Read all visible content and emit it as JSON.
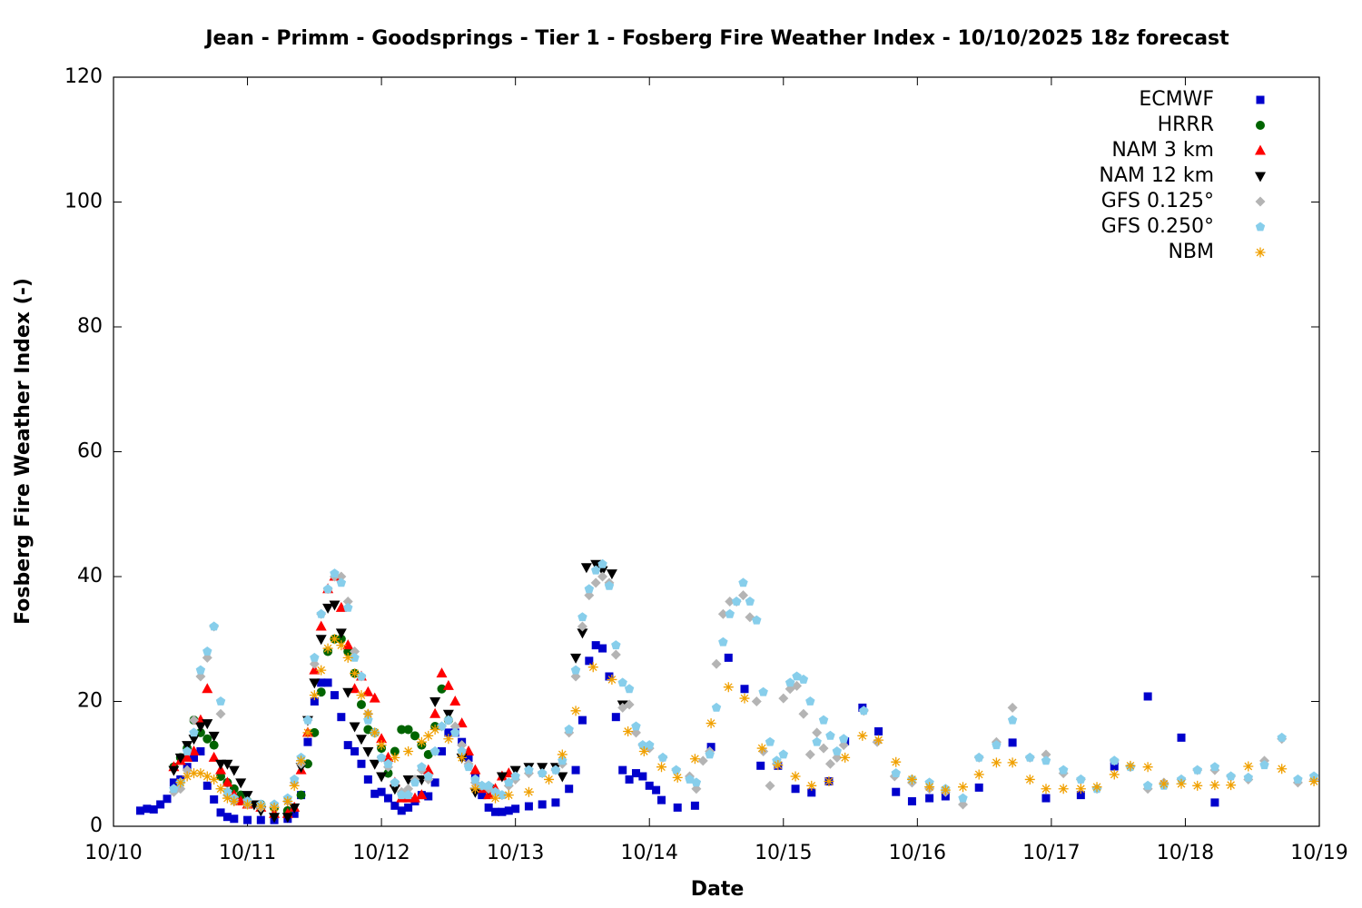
{
  "chart_data": {
    "type": "scatter",
    "title": "Jean - Primm - Goodsprings - Tier 1 - Fosberg Fire Weather Index - 10/10/2025 18z forecast",
    "xlabel": "Date",
    "ylabel": "Fosberg Fire Weather Index (-)",
    "xlim": [
      0,
      9
    ],
    "xticks": [
      {
        "value": 0,
        "label": "10/10"
      },
      {
        "value": 1,
        "label": "10/11"
      },
      {
        "value": 2,
        "label": "10/12"
      },
      {
        "value": 3,
        "label": "10/13"
      },
      {
        "value": 4,
        "label": "10/14"
      },
      {
        "value": 5,
        "label": "10/15"
      },
      {
        "value": 6,
        "label": "10/16"
      },
      {
        "value": 7,
        "label": "10/17"
      },
      {
        "value": 8,
        "label": "10/18"
      },
      {
        "value": 9,
        "label": "10/19"
      }
    ],
    "ylim": [
      0,
      120
    ],
    "yticks": [
      0,
      20,
      40,
      60,
      80,
      100,
      120
    ],
    "legend": "top-right",
    "series": [
      {
        "name": "ECMWF",
        "color": "#0000cc",
        "marker": "square",
        "x": [
          0.2,
          0.25,
          0.3,
          0.35,
          0.4,
          0.45,
          0.5,
          0.55,
          0.6,
          0.65,
          0.7,
          0.75,
          0.8,
          0.85,
          0.9,
          1.0,
          1.1,
          1.2,
          1.3,
          1.35,
          1.4,
          1.45,
          1.5,
          1.55,
          1.6,
          1.65,
          1.7,
          1.75,
          1.8,
          1.85,
          1.9,
          1.95,
          2.0,
          2.05,
          2.1,
          2.15,
          2.2,
          2.25,
          2.3,
          2.35,
          2.4,
          2.45,
          2.5,
          2.55,
          2.6,
          2.65,
          2.7,
          2.75,
          2.8,
          2.85,
          2.9,
          2.95,
          3.0,
          3.1,
          3.2,
          3.3,
          3.4,
          3.45,
          3.5,
          3.55,
          3.6,
          3.65,
          3.7,
          3.75,
          3.8,
          3.85,
          3.9,
          3.95,
          4.0,
          4.05,
          4.09,
          4.21,
          4.34,
          4.46,
          4.59,
          4.71,
          4.83,
          4.96,
          5.09,
          5.21,
          5.34,
          5.46,
          5.59,
          5.71,
          5.84,
          5.96,
          6.09,
          6.21,
          6.46,
          6.71,
          6.96,
          7.22,
          7.47,
          7.72,
          7.97,
          8.22
        ],
        "values": [
          2.5,
          2.8,
          2.7,
          3.5,
          4.4,
          7,
          7.5,
          9.5,
          11,
          12,
          6.5,
          4.3,
          2.2,
          1.5,
          1.2,
          1,
          1,
          1,
          1.2,
          2,
          5,
          13.5,
          20,
          23,
          23,
          21,
          17.5,
          13,
          12,
          10,
          7.5,
          5.2,
          5.5,
          4.5,
          3.3,
          2.5,
          3,
          4,
          5,
          4.8,
          7,
          12,
          15,
          15,
          13.5,
          11,
          8,
          5,
          3,
          2.3,
          2.3,
          2.5,
          2.8,
          3.2,
          3.5,
          3.8,
          6,
          9,
          17,
          26.5,
          29,
          28.5,
          24,
          17.5,
          9,
          7.5,
          8.5,
          8,
          6.5,
          5.8,
          4.2,
          3,
          3.3,
          12.7,
          27,
          22,
          9.7,
          9.7,
          6,
          5.4,
          7.2,
          13.6,
          19,
          15.2,
          5.5,
          4,
          4.5,
          4.8,
          6.2,
          13.4,
          4.5,
          5,
          9.6,
          20.8,
          14.2,
          3.8
        ]
      },
      {
        "name": "HRRR",
        "color": "#006400",
        "marker": "circle",
        "x": [
          0.45,
          0.5,
          0.55,
          0.6,
          0.65,
          0.7,
          0.75,
          0.8,
          0.85,
          0.9,
          0.95,
          1.0,
          1.1,
          1.2,
          1.3,
          1.4,
          1.45,
          1.5,
          1.55,
          1.6,
          1.65,
          1.7,
          1.75,
          1.8,
          1.85,
          1.9,
          1.95,
          2.0,
          2.05,
          2.1,
          2.15,
          2.2,
          2.25,
          2.3,
          2.35,
          2.4,
          2.45,
          2.5
        ],
        "values": [
          9.5,
          11,
          12.5,
          17,
          15,
          14,
          13,
          8,
          7,
          6,
          5,
          4,
          3.5,
          3,
          2.5,
          5,
          10,
          15,
          21.5,
          28,
          30,
          30,
          28,
          24.5,
          19.5,
          15.5,
          15,
          12.5,
          8.5,
          12,
          15.5,
          15.5,
          14.5,
          13,
          11.5,
          16,
          22,
          17
        ]
      },
      {
        "name": "NAM 3 km",
        "color": "#ff0000",
        "marker": "triangle-up",
        "x": [
          0.45,
          0.5,
          0.55,
          0.6,
          0.65,
          0.7,
          0.75,
          0.8,
          0.85,
          0.9,
          0.95,
          1.0,
          1.1,
          1.2,
          1.3,
          1.35,
          1.4,
          1.45,
          1.5,
          1.55,
          1.6,
          1.65,
          1.7,
          1.75,
          1.8,
          1.85,
          1.9,
          1.95,
          2.0,
          2.05,
          2.1,
          2.15,
          2.2,
          2.25,
          2.3,
          2.35,
          2.4,
          2.45,
          2.5,
          2.55,
          2.6,
          2.65,
          2.7,
          2.75,
          2.8,
          2.85,
          2.9,
          2.95
        ],
        "values": [
          9.5,
          10.5,
          11,
          12,
          17,
          22,
          11,
          9,
          7,
          5,
          4,
          3.5,
          3,
          2,
          2,
          3,
          9,
          15,
          25,
          32,
          38,
          40,
          35,
          29,
          22,
          24,
          21.5,
          20.5,
          14,
          11,
          7,
          4.5,
          4.5,
          4.5,
          5,
          9,
          18,
          24.5,
          22.5,
          20,
          16.5,
          12,
          9,
          6,
          5,
          6,
          8,
          8.5
        ]
      },
      {
        "name": "NAM 12 km",
        "color": "#000000",
        "marker": "triangle-down",
        "x": [
          0.45,
          0.5,
          0.55,
          0.6,
          0.65,
          0.7,
          0.75,
          0.8,
          0.85,
          0.9,
          0.95,
          1.0,
          1.05,
          1.1,
          1.2,
          1.3,
          1.35,
          1.4,
          1.45,
          1.5,
          1.55,
          1.6,
          1.65,
          1.7,
          1.75,
          1.8,
          1.85,
          1.9,
          1.95,
          2.0,
          2.1,
          2.2,
          2.3,
          2.4,
          2.5,
          2.6,
          2.7,
          2.8,
          2.9,
          3.0,
          3.1,
          3.2,
          3.3,
          3.35,
          3.45,
          3.5,
          3.53,
          3.6,
          3.65,
          3.72,
          3.8
        ],
        "values": [
          9,
          11,
          13,
          14,
          16,
          16.5,
          14.5,
          10,
          10,
          9,
          7,
          5,
          3.5,
          2.5,
          1.5,
          1.5,
          3,
          9.5,
          17,
          23,
          30,
          35,
          35.5,
          31,
          21.5,
          16,
          14,
          12,
          10,
          8,
          6,
          7.5,
          7.5,
          20,
          18,
          11,
          5.5,
          6,
          8,
          9,
          9.5,
          9.5,
          9.5,
          8,
          27,
          31,
          41.5,
          42,
          41,
          40.5,
          19.5
        ]
      },
      {
        "name": "GFS 0.125°",
        "color": "#b4b4b4",
        "marker": "diamond",
        "x": [
          0.45,
          0.5,
          0.55,
          0.6,
          0.65,
          0.7,
          0.75,
          0.8,
          0.85,
          0.9,
          1.0,
          1.1,
          1.2,
          1.3,
          1.35,
          1.4,
          1.45,
          1.5,
          1.55,
          1.6,
          1.65,
          1.7,
          1.75,
          1.8,
          1.85,
          1.9,
          1.95,
          2.0,
          2.05,
          2.1,
          2.15,
          2.2,
          2.25,
          2.3,
          2.35,
          2.4,
          2.45,
          2.5,
          2.55,
          2.6,
          2.65,
          2.7,
          2.75,
          2.8,
          2.85,
          2.9,
          2.95,
          3.0,
          3.1,
          3.2,
          3.3,
          3.35,
          3.4,
          3.45,
          3.5,
          3.55,
          3.6,
          3.65,
          3.7,
          3.75,
          3.8,
          3.85,
          3.9,
          3.95,
          4.0,
          4.1,
          4.2,
          4.3,
          4.35,
          4.4,
          4.45,
          4.5,
          4.55,
          4.6,
          4.65,
          4.7,
          4.75,
          4.8,
          4.85,
          4.9,
          4.95,
          5.0,
          5.05,
          5.1,
          5.15,
          5.2,
          5.25,
          5.3,
          5.35,
          5.4,
          5.45,
          5.6,
          5.7,
          5.83,
          5.96,
          6.09,
          6.21,
          6.34,
          6.46,
          6.59,
          6.71,
          6.84,
          6.96,
          7.09,
          7.22,
          7.34,
          7.47,
          7.59,
          7.72,
          7.84,
          7.97,
          8.09,
          8.22,
          8.34,
          8.47,
          8.59,
          8.72,
          8.84,
          8.96
        ],
        "values": [
          5.5,
          6,
          9,
          17,
          24,
          27,
          32,
          18,
          5,
          4,
          3.5,
          3,
          3.2,
          4,
          7,
          10,
          17,
          26,
          34,
          38,
          40,
          40,
          36,
          28,
          24,
          18,
          15,
          11,
          9.5,
          7,
          5.5,
          6,
          7.5,
          9,
          7.5,
          12,
          16,
          17,
          16,
          13,
          10,
          7,
          6.5,
          6,
          5.5,
          5,
          6.5,
          7.5,
          8.5,
          8.5,
          9,
          10,
          15,
          24,
          32,
          37,
          39,
          40,
          39,
          27.5,
          19,
          19.5,
          15,
          13,
          12.5,
          11,
          9,
          8,
          6,
          10.5,
          12,
          26,
          34,
          36,
          36,
          37,
          33.5,
          20,
          12,
          6.5,
          10,
          20.5,
          22,
          22.5,
          18,
          11.5,
          15,
          12.5,
          10,
          11,
          13,
          18.5,
          13.5,
          8,
          7,
          6,
          5.5,
          3.5,
          11,
          13.5,
          19,
          11,
          11.5,
          8.5,
          7.5,
          6,
          10.5,
          9.5,
          6,
          7,
          7.5,
          9,
          9,
          8,
          7.5,
          10.5,
          14,
          7,
          7.5
        ]
      },
      {
        "name": "GFS 0.250°",
        "color": "#87ceeb",
        "marker": "pentagon",
        "x": [
          0.45,
          0.5,
          0.55,
          0.6,
          0.65,
          0.7,
          0.75,
          0.8,
          0.85,
          0.9,
          1.0,
          1.1,
          1.2,
          1.3,
          1.35,
          1.4,
          1.45,
          1.5,
          1.55,
          1.6,
          1.65,
          1.7,
          1.75,
          1.8,
          1.85,
          1.9,
          1.95,
          2.0,
          2.05,
          2.1,
          2.15,
          2.2,
          2.25,
          2.3,
          2.35,
          2.4,
          2.45,
          2.5,
          2.55,
          2.6,
          2.65,
          2.7,
          2.75,
          2.8,
          2.85,
          2.9,
          2.95,
          3.0,
          3.1,
          3.2,
          3.3,
          3.35,
          3.4,
          3.45,
          3.5,
          3.55,
          3.6,
          3.65,
          3.7,
          3.75,
          3.8,
          3.85,
          3.9,
          3.95,
          4.0,
          4.1,
          4.2,
          4.3,
          4.35,
          4.45,
          4.5,
          4.55,
          4.6,
          4.65,
          4.7,
          4.75,
          4.8,
          4.85,
          4.9,
          4.95,
          5.0,
          5.05,
          5.1,
          5.15,
          5.2,
          5.25,
          5.3,
          5.35,
          5.4,
          5.45,
          5.6,
          5.84,
          5.96,
          6.09,
          6.21,
          6.34,
          6.46,
          6.59,
          6.71,
          6.84,
          6.96,
          7.09,
          7.22,
          7.34,
          7.47,
          7.59,
          7.72,
          7.84,
          7.97,
          8.09,
          8.22,
          8.34,
          8.47,
          8.59,
          8.72,
          8.84,
          8.96
        ],
        "values": [
          6,
          7,
          12,
          15,
          25,
          28,
          32,
          20,
          5.5,
          4.5,
          4,
          3.5,
          3.5,
          4.5,
          7.5,
          11,
          17,
          27,
          34,
          38,
          40.5,
          39,
          35,
          27,
          24,
          17,
          15,
          11,
          10,
          7,
          5,
          5,
          7,
          9.5,
          8,
          12,
          16,
          17,
          15,
          12,
          9.5,
          7.5,
          6.5,
          6.5,
          5.5,
          5,
          7,
          8,
          9,
          8.5,
          9,
          10.5,
          15.5,
          25,
          33.5,
          38,
          41,
          42,
          38.5,
          29,
          23,
          22,
          16,
          13,
          13,
          11,
          9,
          7.5,
          7,
          11.5,
          19,
          29.5,
          34,
          36,
          39,
          36,
          33,
          21.5,
          13.5,
          10.5,
          11.5,
          23,
          24,
          23.5,
          20,
          13.5,
          17,
          14.5,
          12,
          14,
          18.5,
          8.5,
          7.5,
          7,
          6,
          4.5,
          11,
          13,
          17,
          11,
          10.5,
          9,
          7.5,
          6,
          10.5,
          9.5,
          6.5,
          6.5,
          7.5,
          9,
          9.5,
          8,
          7.8,
          9.8,
          14.2,
          7.5,
          8
        ]
      },
      {
        "name": "NBM",
        "color": "#f0a000",
        "marker": "asterisk",
        "x": [
          0.5,
          0.55,
          0.6,
          0.65,
          0.7,
          0.75,
          0.8,
          0.85,
          0.9,
          1.0,
          1.1,
          1.2,
          1.3,
          1.35,
          1.4,
          1.45,
          1.5,
          1.55,
          1.6,
          1.65,
          1.7,
          1.75,
          1.8,
          1.85,
          1.9,
          1.95,
          2.0,
          2.1,
          2.2,
          2.3,
          2.35,
          2.4,
          2.5,
          2.6,
          2.7,
          2.85,
          2.95,
          3.1,
          3.25,
          3.35,
          3.45,
          3.58,
          3.72,
          3.84,
          3.96,
          4.09,
          4.21,
          4.34,
          4.46,
          4.59,
          4.71,
          4.84,
          4.96,
          5.09,
          5.21,
          5.34,
          5.46,
          5.59,
          5.71,
          5.84,
          5.96,
          6.09,
          6.21,
          6.34,
          6.46,
          6.59,
          6.71,
          6.84,
          6.96,
          7.09,
          7.22,
          7.34,
          7.47,
          7.59,
          7.72,
          7.84,
          7.97,
          8.09,
          8.22,
          8.34,
          8.47,
          8.72,
          8.96
        ],
        "values": [
          7,
          8,
          8.5,
          8.5,
          8,
          7.5,
          6,
          4.5,
          4,
          3.5,
          3.2,
          3,
          4,
          6.5,
          10.5,
          15,
          21,
          25,
          28.5,
          30,
          29,
          27,
          24.5,
          21,
          18,
          15,
          13,
          11,
          12,
          13.5,
          14.5,
          15.5,
          14,
          11,
          6,
          4.5,
          5,
          5.5,
          7.5,
          11.5,
          18.5,
          25.5,
          23.5,
          15.2,
          12,
          9.5,
          7.8,
          10.8,
          16.5,
          22.3,
          20.5,
          12.5,
          9.8,
          8,
          6.5,
          7.2,
          11,
          14.5,
          13.8,
          10.3,
          7.5,
          6.3,
          5.8,
          6.3,
          8.3,
          10.2,
          10.2,
          7.5,
          6,
          6,
          6,
          6.3,
          8.3,
          9.7,
          9.5,
          6.8,
          6.8,
          6.5,
          6.6,
          6.6,
          9.6,
          9.2,
          7.2
        ]
      }
    ]
  }
}
